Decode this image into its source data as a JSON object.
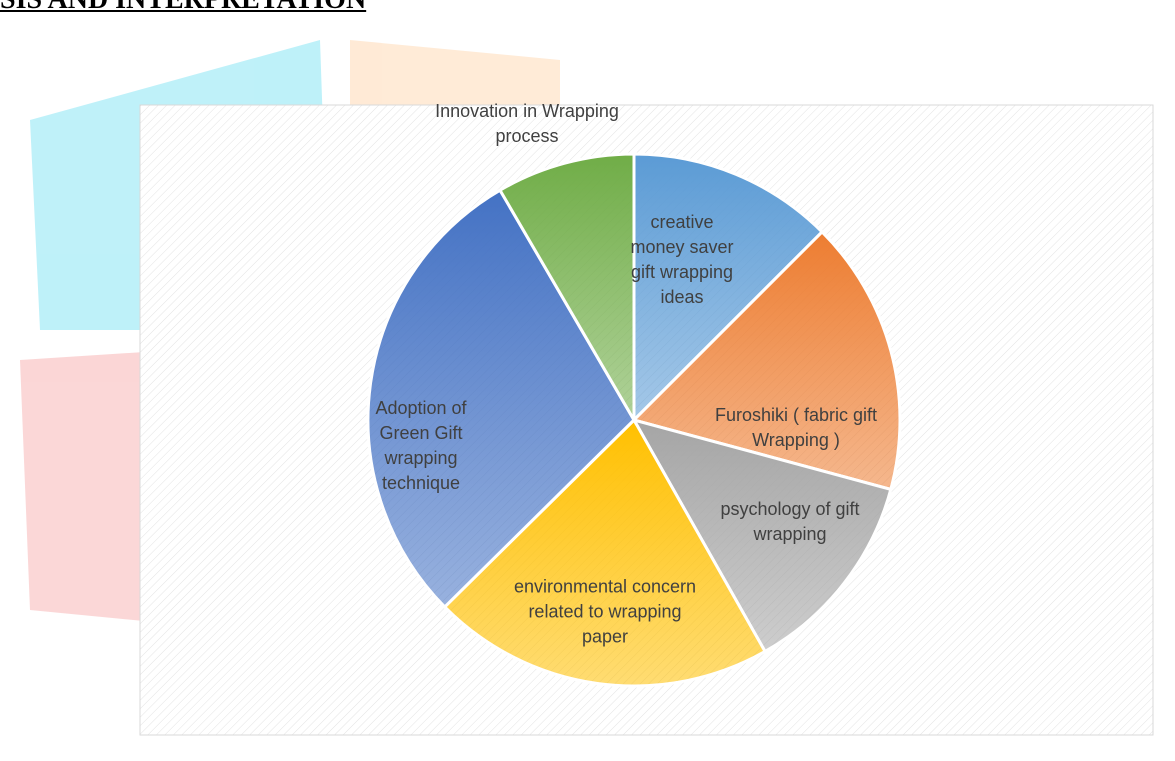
{
  "heading": "SIS AND INTERPRETATION",
  "chart_data": {
    "type": "pie",
    "categories": [
      "creative money saver gift wrapping ideas",
      "Furoshiki ( fabric gift Wrapping )",
      "psychology of gift wrapping",
      "environmental concern related to wrapping paper",
      "Adoption of Green Gift wrapping technique",
      "Innovation in Wrapping process"
    ],
    "values": [
      12.5,
      16.7,
      12.6,
      20.8,
      29,
      8.4
    ],
    "colors": [
      "#5b9bd5",
      "#ed7d31",
      "#a5a5a5",
      "#ffc000",
      "#4472c4",
      "#70ad47"
    ]
  }
}
